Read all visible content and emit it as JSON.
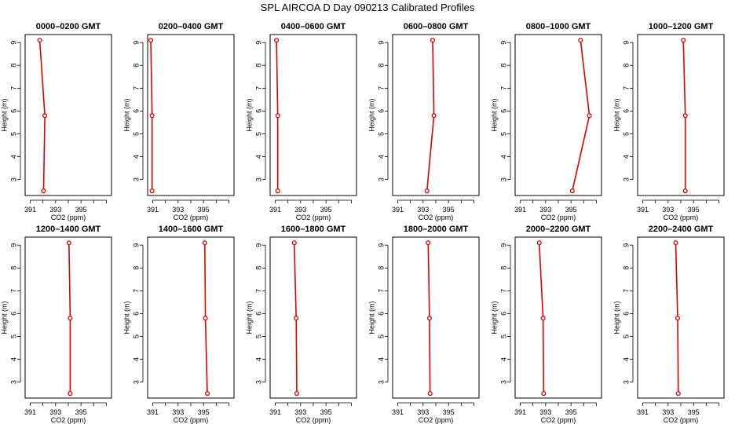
{
  "title": "SPL AIRCOA D  Day 090213  Calibrated Profiles",
  "colors": {
    "profile": "#e00000",
    "axis": "#000000"
  },
  "chart_data": [
    {
      "type": "line",
      "title": "0000–0200 GMT",
      "xlabel": "CO2 (ppm)",
      "ylabel": "Height (m)",
      "xlim": [
        390.6,
        397.4
      ],
      "ylim": [
        2.3,
        9.35
      ],
      "xticks": [
        391,
        392,
        393,
        394,
        395,
        396,
        397
      ],
      "xticklabels": [
        "391",
        "",
        "393",
        "",
        "395",
        "",
        ""
      ],
      "yticks": [
        3,
        4,
        5,
        6,
        7,
        8,
        9
      ],
      "x": [
        392.05,
        392.15,
        391.75
      ],
      "y": [
        2.5,
        5.8,
        9.1
      ]
    },
    {
      "type": "line",
      "title": "0200–0400 GMT",
      "xlabel": "CO2 (ppm)",
      "ylabel": "Height (m)",
      "xlim": [
        390.6,
        397.4
      ],
      "ylim": [
        2.3,
        9.35
      ],
      "xticks": [
        391,
        392,
        393,
        394,
        395,
        396,
        397
      ],
      "xticklabels": [
        "391",
        "",
        "393",
        "",
        "395",
        "",
        ""
      ],
      "yticks": [
        3,
        4,
        5,
        6,
        7,
        8,
        9
      ],
      "x": [
        390.95,
        390.95,
        390.85
      ],
      "y": [
        2.5,
        5.8,
        9.1
      ]
    },
    {
      "type": "line",
      "title": "0400–0600 GMT",
      "xlabel": "CO2 (ppm)",
      "ylabel": "Height (m)",
      "xlim": [
        390.6,
        397.4
      ],
      "ylim": [
        2.3,
        9.35
      ],
      "xticks": [
        391,
        392,
        393,
        394,
        395,
        396,
        397
      ],
      "xticklabels": [
        "391",
        "",
        "393",
        "",
        "395",
        "",
        ""
      ],
      "yticks": [
        3,
        4,
        5,
        6,
        7,
        8,
        9
      ],
      "x": [
        391.2,
        391.2,
        391.1
      ],
      "y": [
        2.5,
        5.8,
        9.1
      ]
    },
    {
      "type": "line",
      "title": "0600–0800 GMT",
      "xlabel": "CO2 (ppm)",
      "ylabel": "Height (m)",
      "xlim": [
        390.6,
        397.4
      ],
      "ylim": [
        2.3,
        9.35
      ],
      "xticks": [
        391,
        392,
        393,
        394,
        395,
        396,
        397
      ],
      "xticklabels": [
        "391",
        "",
        "393",
        "",
        "395",
        "",
        ""
      ],
      "yticks": [
        3,
        4,
        5,
        6,
        7,
        8,
        9
      ],
      "x": [
        393.3,
        393.85,
        393.75
      ],
      "y": [
        2.5,
        5.8,
        9.1
      ]
    },
    {
      "type": "line",
      "title": "0800–1000 GMT",
      "xlabel": "CO2 (ppm)",
      "ylabel": "Height (m)",
      "xlim": [
        390.6,
        397.4
      ],
      "ylim": [
        2.3,
        9.35
      ],
      "xticks": [
        391,
        392,
        393,
        394,
        395,
        396,
        397
      ],
      "xticklabels": [
        "391",
        "",
        "393",
        "",
        "395",
        "",
        ""
      ],
      "yticks": [
        3,
        4,
        5,
        6,
        7,
        8,
        9
      ],
      "x": [
        395.1,
        396.45,
        395.75
      ],
      "y": [
        2.5,
        5.8,
        9.1
      ]
    },
    {
      "type": "line",
      "title": "1000–1200 GMT",
      "xlabel": "CO2 (ppm)",
      "ylabel": "Height (m)",
      "xlim": [
        390.6,
        397.4
      ],
      "ylim": [
        2.3,
        9.35
      ],
      "xticks": [
        391,
        392,
        393,
        394,
        395,
        396,
        397
      ],
      "xticklabels": [
        "391",
        "",
        "393",
        "",
        "395",
        "",
        ""
      ],
      "yticks": [
        3,
        4,
        5,
        6,
        7,
        8,
        9
      ],
      "x": [
        394.35,
        394.35,
        394.2
      ],
      "y": [
        2.5,
        5.8,
        9.1
      ]
    },
    {
      "type": "line",
      "title": "1200–1400 GMT",
      "xlabel": "CO2 (ppm)",
      "ylabel": "Height (m)",
      "xlim": [
        390.6,
        397.4
      ],
      "ylim": [
        2.3,
        9.35
      ],
      "xticks": [
        391,
        392,
        393,
        394,
        395,
        396,
        397
      ],
      "xticklabels": [
        "391",
        "",
        "393",
        "",
        "395",
        "",
        ""
      ],
      "yticks": [
        3,
        4,
        5,
        6,
        7,
        8,
        9
      ],
      "x": [
        394.15,
        394.15,
        394.05
      ],
      "y": [
        2.5,
        5.8,
        9.1
      ]
    },
    {
      "type": "line",
      "title": "1400–1600 GMT",
      "xlabel": "CO2 (ppm)",
      "ylabel": "Height (m)",
      "xlim": [
        390.6,
        397.4
      ],
      "ylim": [
        2.3,
        9.35
      ],
      "xticks": [
        391,
        392,
        393,
        394,
        395,
        396,
        397
      ],
      "xticklabels": [
        "391",
        "",
        "393",
        "",
        "395",
        "",
        ""
      ],
      "yticks": [
        3,
        4,
        5,
        6,
        7,
        8,
        9
      ],
      "x": [
        395.3,
        395.15,
        395.1
      ],
      "y": [
        2.5,
        5.8,
        9.1
      ]
    },
    {
      "type": "line",
      "title": "1600–1800 GMT",
      "xlabel": "CO2 (ppm)",
      "ylabel": "Height (m)",
      "xlim": [
        390.6,
        397.4
      ],
      "ylim": [
        2.3,
        9.35
      ],
      "xticks": [
        391,
        392,
        393,
        394,
        395,
        396,
        397
      ],
      "xticklabels": [
        "391",
        "",
        "393",
        "",
        "395",
        "",
        ""
      ],
      "yticks": [
        3,
        4,
        5,
        6,
        7,
        8,
        9
      ],
      "x": [
        392.7,
        392.65,
        392.5
      ],
      "y": [
        2.5,
        5.8,
        9.1
      ]
    },
    {
      "type": "line",
      "title": "1800–2000 GMT",
      "xlabel": "CO2 (ppm)",
      "ylabel": "Height (m)",
      "xlim": [
        390.6,
        397.4
      ],
      "ylim": [
        2.3,
        9.35
      ],
      "xticks": [
        391,
        392,
        393,
        394,
        395,
        396,
        397
      ],
      "xticklabels": [
        "391",
        "",
        "393",
        "",
        "395",
        "",
        ""
      ],
      "yticks": [
        3,
        4,
        5,
        6,
        7,
        8,
        9
      ],
      "x": [
        393.55,
        393.5,
        393.4
      ],
      "y": [
        2.5,
        5.8,
        9.1
      ]
    },
    {
      "type": "line",
      "title": "2000–2200 GMT",
      "xlabel": "CO2 (ppm)",
      "ylabel": "Height (m)",
      "xlim": [
        390.6,
        397.4
      ],
      "ylim": [
        2.3,
        9.35
      ],
      "xticks": [
        391,
        392,
        393,
        394,
        395,
        396,
        397
      ],
      "xticklabels": [
        "391",
        "",
        "393",
        "",
        "395",
        "",
        ""
      ],
      "yticks": [
        3,
        4,
        5,
        6,
        7,
        8,
        9
      ],
      "x": [
        392.85,
        392.8,
        392.5
      ],
      "y": [
        2.5,
        5.8,
        9.1
      ]
    },
    {
      "type": "line",
      "title": "2200–2400 GMT",
      "xlabel": "CO2 (ppm)",
      "ylabel": "Height (m)",
      "xlim": [
        390.6,
        397.4
      ],
      "ylim": [
        2.3,
        9.35
      ],
      "xticks": [
        391,
        392,
        393,
        394,
        395,
        396,
        397
      ],
      "xticklabels": [
        "391",
        "",
        "393",
        "",
        "395",
        "",
        ""
      ],
      "yticks": [
        3,
        4,
        5,
        6,
        7,
        8,
        9
      ],
      "x": [
        393.8,
        393.75,
        393.6
      ],
      "y": [
        2.5,
        5.8,
        9.1
      ]
    }
  ]
}
